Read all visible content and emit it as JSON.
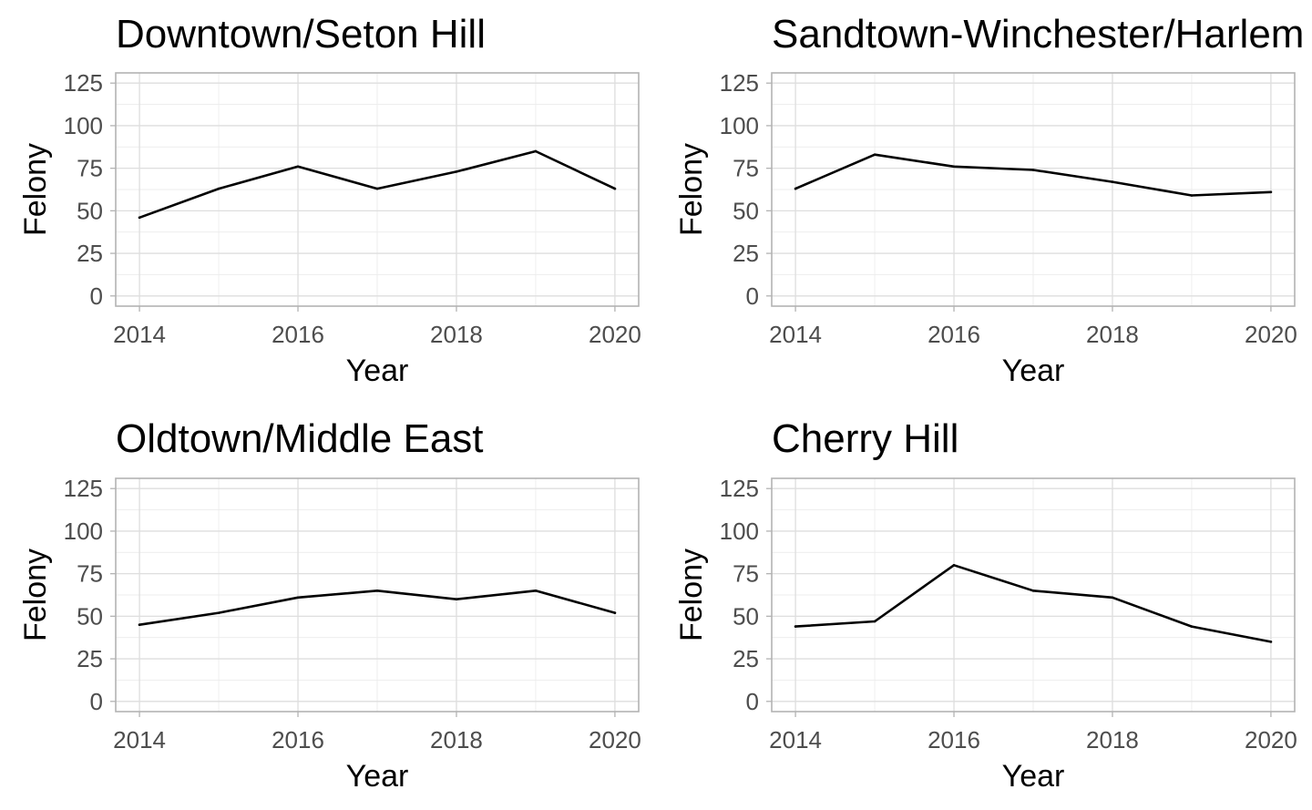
{
  "chart_data": [
    {
      "type": "line",
      "title": "Downtown/Seton Hill",
      "xlabel": "Year",
      "ylabel": "Felony",
      "x": [
        2014,
        2015,
        2016,
        2017,
        2018,
        2019,
        2020
      ],
      "values": [
        46,
        63,
        76,
        63,
        73,
        85,
        63
      ],
      "xticks": [
        "2014",
        "2016",
        "2018",
        "2020"
      ],
      "yticks": [
        "0",
        "25",
        "50",
        "75",
        "100",
        "125"
      ],
      "xlim": [
        2013.7,
        2020.3
      ],
      "ylim": [
        -6,
        131
      ],
      "grid": true
    },
    {
      "type": "line",
      "title": "Sandtown-Winchester/Harlem",
      "xlabel": "Year",
      "ylabel": "Felony",
      "x": [
        2014,
        2015,
        2016,
        2017,
        2018,
        2019,
        2020
      ],
      "values": [
        63,
        83,
        76,
        74,
        67,
        59,
        61
      ],
      "xticks": [
        "2014",
        "2016",
        "2018",
        "2020"
      ],
      "yticks": [
        "0",
        "25",
        "50",
        "75",
        "100",
        "125"
      ],
      "xlim": [
        2013.7,
        2020.3
      ],
      "ylim": [
        -6,
        131
      ],
      "grid": true
    },
    {
      "type": "line",
      "title": "Oldtown/Middle East",
      "xlabel": "Year",
      "ylabel": "Felony",
      "x": [
        2014,
        2015,
        2016,
        2017,
        2018,
        2019,
        2020
      ],
      "values": [
        45,
        52,
        61,
        65,
        60,
        65,
        52
      ],
      "xticks": [
        "2014",
        "2016",
        "2018",
        "2020"
      ],
      "yticks": [
        "0",
        "25",
        "50",
        "75",
        "100",
        "125"
      ],
      "xlim": [
        2013.7,
        2020.3
      ],
      "ylim": [
        -6,
        131
      ],
      "grid": true
    },
    {
      "type": "line",
      "title": "Cherry Hill",
      "xlabel": "Year",
      "ylabel": "Felony",
      "x": [
        2014,
        2015,
        2016,
        2017,
        2018,
        2019,
        2020
      ],
      "values": [
        44,
        47,
        80,
        65,
        61,
        44,
        35
      ],
      "xticks": [
        "2014",
        "2016",
        "2018",
        "2020"
      ],
      "yticks": [
        "0",
        "25",
        "50",
        "75",
        "100",
        "125"
      ],
      "xlim": [
        2013.7,
        2020.3
      ],
      "ylim": [
        -6,
        131
      ],
      "grid": true
    }
  ],
  "colors": {
    "line": "#000000",
    "grid_major": "#dedede",
    "grid_minor": "#ececec",
    "border": "#b3b3b3",
    "tick_text": "#4d4d4d"
  }
}
